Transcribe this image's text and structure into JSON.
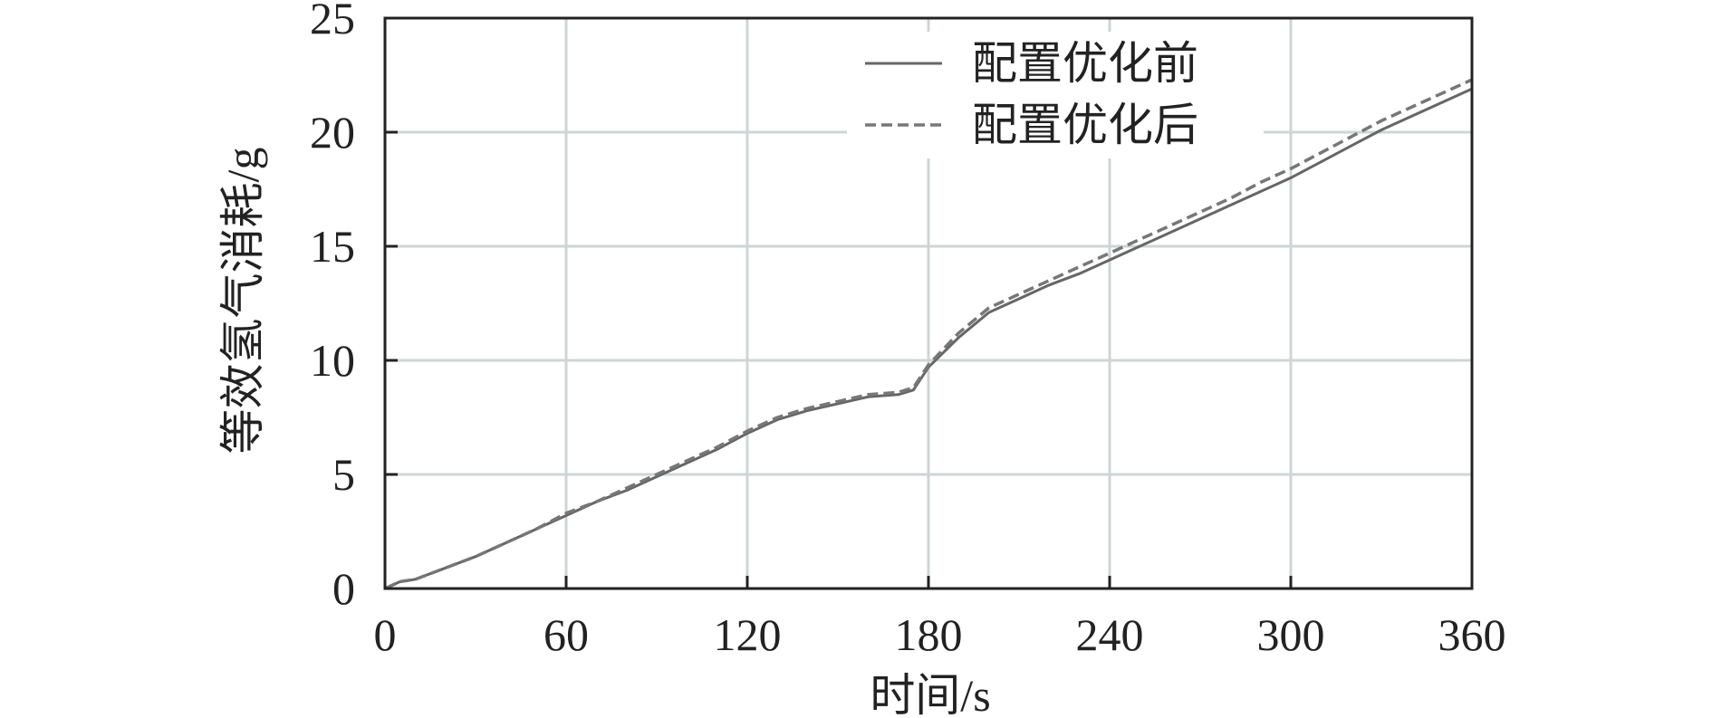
{
  "chart_data": {
    "type": "line",
    "title": "",
    "xlabel": "时间/s",
    "ylabel": "等效氢气消耗/g",
    "xlim": [
      0,
      360
    ],
    "ylim": [
      0,
      25
    ],
    "xticks": [
      0,
      60,
      120,
      180,
      240,
      300,
      360
    ],
    "yticks": [
      0,
      5,
      10,
      15,
      20,
      25
    ],
    "xtick_labels": [
      "0",
      "60",
      "120",
      "180",
      "240",
      "300",
      "360"
    ],
    "ytick_labels": [
      "0",
      "5",
      "10",
      "15",
      "20",
      "25"
    ],
    "grid": true,
    "legend_position": "top-right",
    "colors": {
      "grid": "#cfd4d4",
      "axis": "#222222",
      "before": "#666666",
      "after": "#777777"
    },
    "series": [
      {
        "name": "配置优化前",
        "style": "solid",
        "x": [
          0,
          5,
          10,
          20,
          30,
          40,
          50,
          60,
          70,
          80,
          90,
          100,
          110,
          120,
          130,
          140,
          150,
          160,
          170,
          175,
          180,
          190,
          200,
          210,
          220,
          230,
          240,
          250,
          260,
          270,
          280,
          290,
          300,
          310,
          320,
          330,
          340,
          350,
          360
        ],
        "y": [
          0,
          0.3,
          0.4,
          0.9,
          1.4,
          2.0,
          2.6,
          3.2,
          3.8,
          4.3,
          4.9,
          5.5,
          6.1,
          6.8,
          7.4,
          7.8,
          8.1,
          8.4,
          8.5,
          8.7,
          9.7,
          11.0,
          12.1,
          12.7,
          13.3,
          13.8,
          14.4,
          15.0,
          15.6,
          16.2,
          16.8,
          17.4,
          18.0,
          18.7,
          19.4,
          20.1,
          20.7,
          21.3,
          21.9
        ]
      },
      {
        "name": "配置优化后",
        "style": "dashed",
        "x": [
          0,
          5,
          10,
          20,
          30,
          40,
          50,
          60,
          70,
          80,
          90,
          100,
          110,
          120,
          130,
          140,
          150,
          160,
          170,
          175,
          180,
          190,
          200,
          210,
          220,
          230,
          240,
          250,
          260,
          270,
          280,
          290,
          300,
          310,
          320,
          330,
          340,
          350,
          360
        ],
        "y": [
          0,
          0.3,
          0.4,
          0.9,
          1.4,
          2.0,
          2.6,
          3.3,
          3.8,
          4.4,
          5.0,
          5.6,
          6.2,
          6.9,
          7.5,
          7.9,
          8.2,
          8.5,
          8.6,
          8.8,
          9.8,
          11.2,
          12.3,
          12.9,
          13.5,
          14.1,
          14.7,
          15.3,
          15.9,
          16.5,
          17.1,
          17.8,
          18.4,
          19.1,
          19.8,
          20.5,
          21.1,
          21.7,
          22.3
        ]
      }
    ]
  }
}
